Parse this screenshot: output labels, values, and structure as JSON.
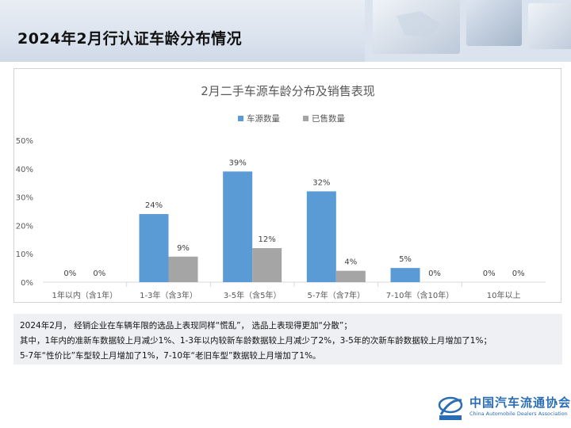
{
  "page": {
    "title": "2024年2月行认证车龄分布情况"
  },
  "colors": {
    "series_1": "#5b9bd5",
    "series_2": "#a5a5a5",
    "brand": "#2a6db5",
    "note_bg": "#eef0f3"
  },
  "chart_data": {
    "type": "bar",
    "title": "2月二手车源车龄分布及销售表现",
    "categories": [
      "1年以内（含1年）",
      "1-3年（含3年）",
      "3-5年（含5年）",
      "5-7年（含7年）",
      "7-10年（含10年）",
      "10年以上"
    ],
    "series": [
      {
        "name": "车源数量",
        "values": [
          0,
          24,
          39,
          32,
          5,
          0
        ],
        "labels": [
          "0%",
          "24%",
          "39%",
          "32%",
          "5%",
          "0%"
        ]
      },
      {
        "name": "已售数量",
        "values": [
          0,
          9,
          12,
          4,
          0,
          0
        ],
        "labels": [
          "0%",
          "9%",
          "12%",
          "4%",
          "0%",
          "0%"
        ]
      }
    ],
    "y_ticks": [
      "0%",
      "10%",
      "20%",
      "30%",
      "40%",
      "50%"
    ],
    "ylim": [
      0,
      50
    ],
    "legend_position": "top-center",
    "grid": false
  },
  "notes": [
    "2024年2月， 经销企业在车辆年限的选品上表现同样“慌乱”， 选品上表现得更加“分散”；",
    "其中，1年内的准新车数据较上月减少1%、1-3年以内较新车龄数据较上月减少了2%，3-5年的次新车龄数据较上月增加了1%；",
    "5-7年“性价比”车型较上月增加了1%，7-10年“老旧车型”数据较上月增加了1%。"
  ],
  "logo": {
    "name_cn": "中国汽车流通协会",
    "name_en": "China Automobile Dealers Association"
  }
}
